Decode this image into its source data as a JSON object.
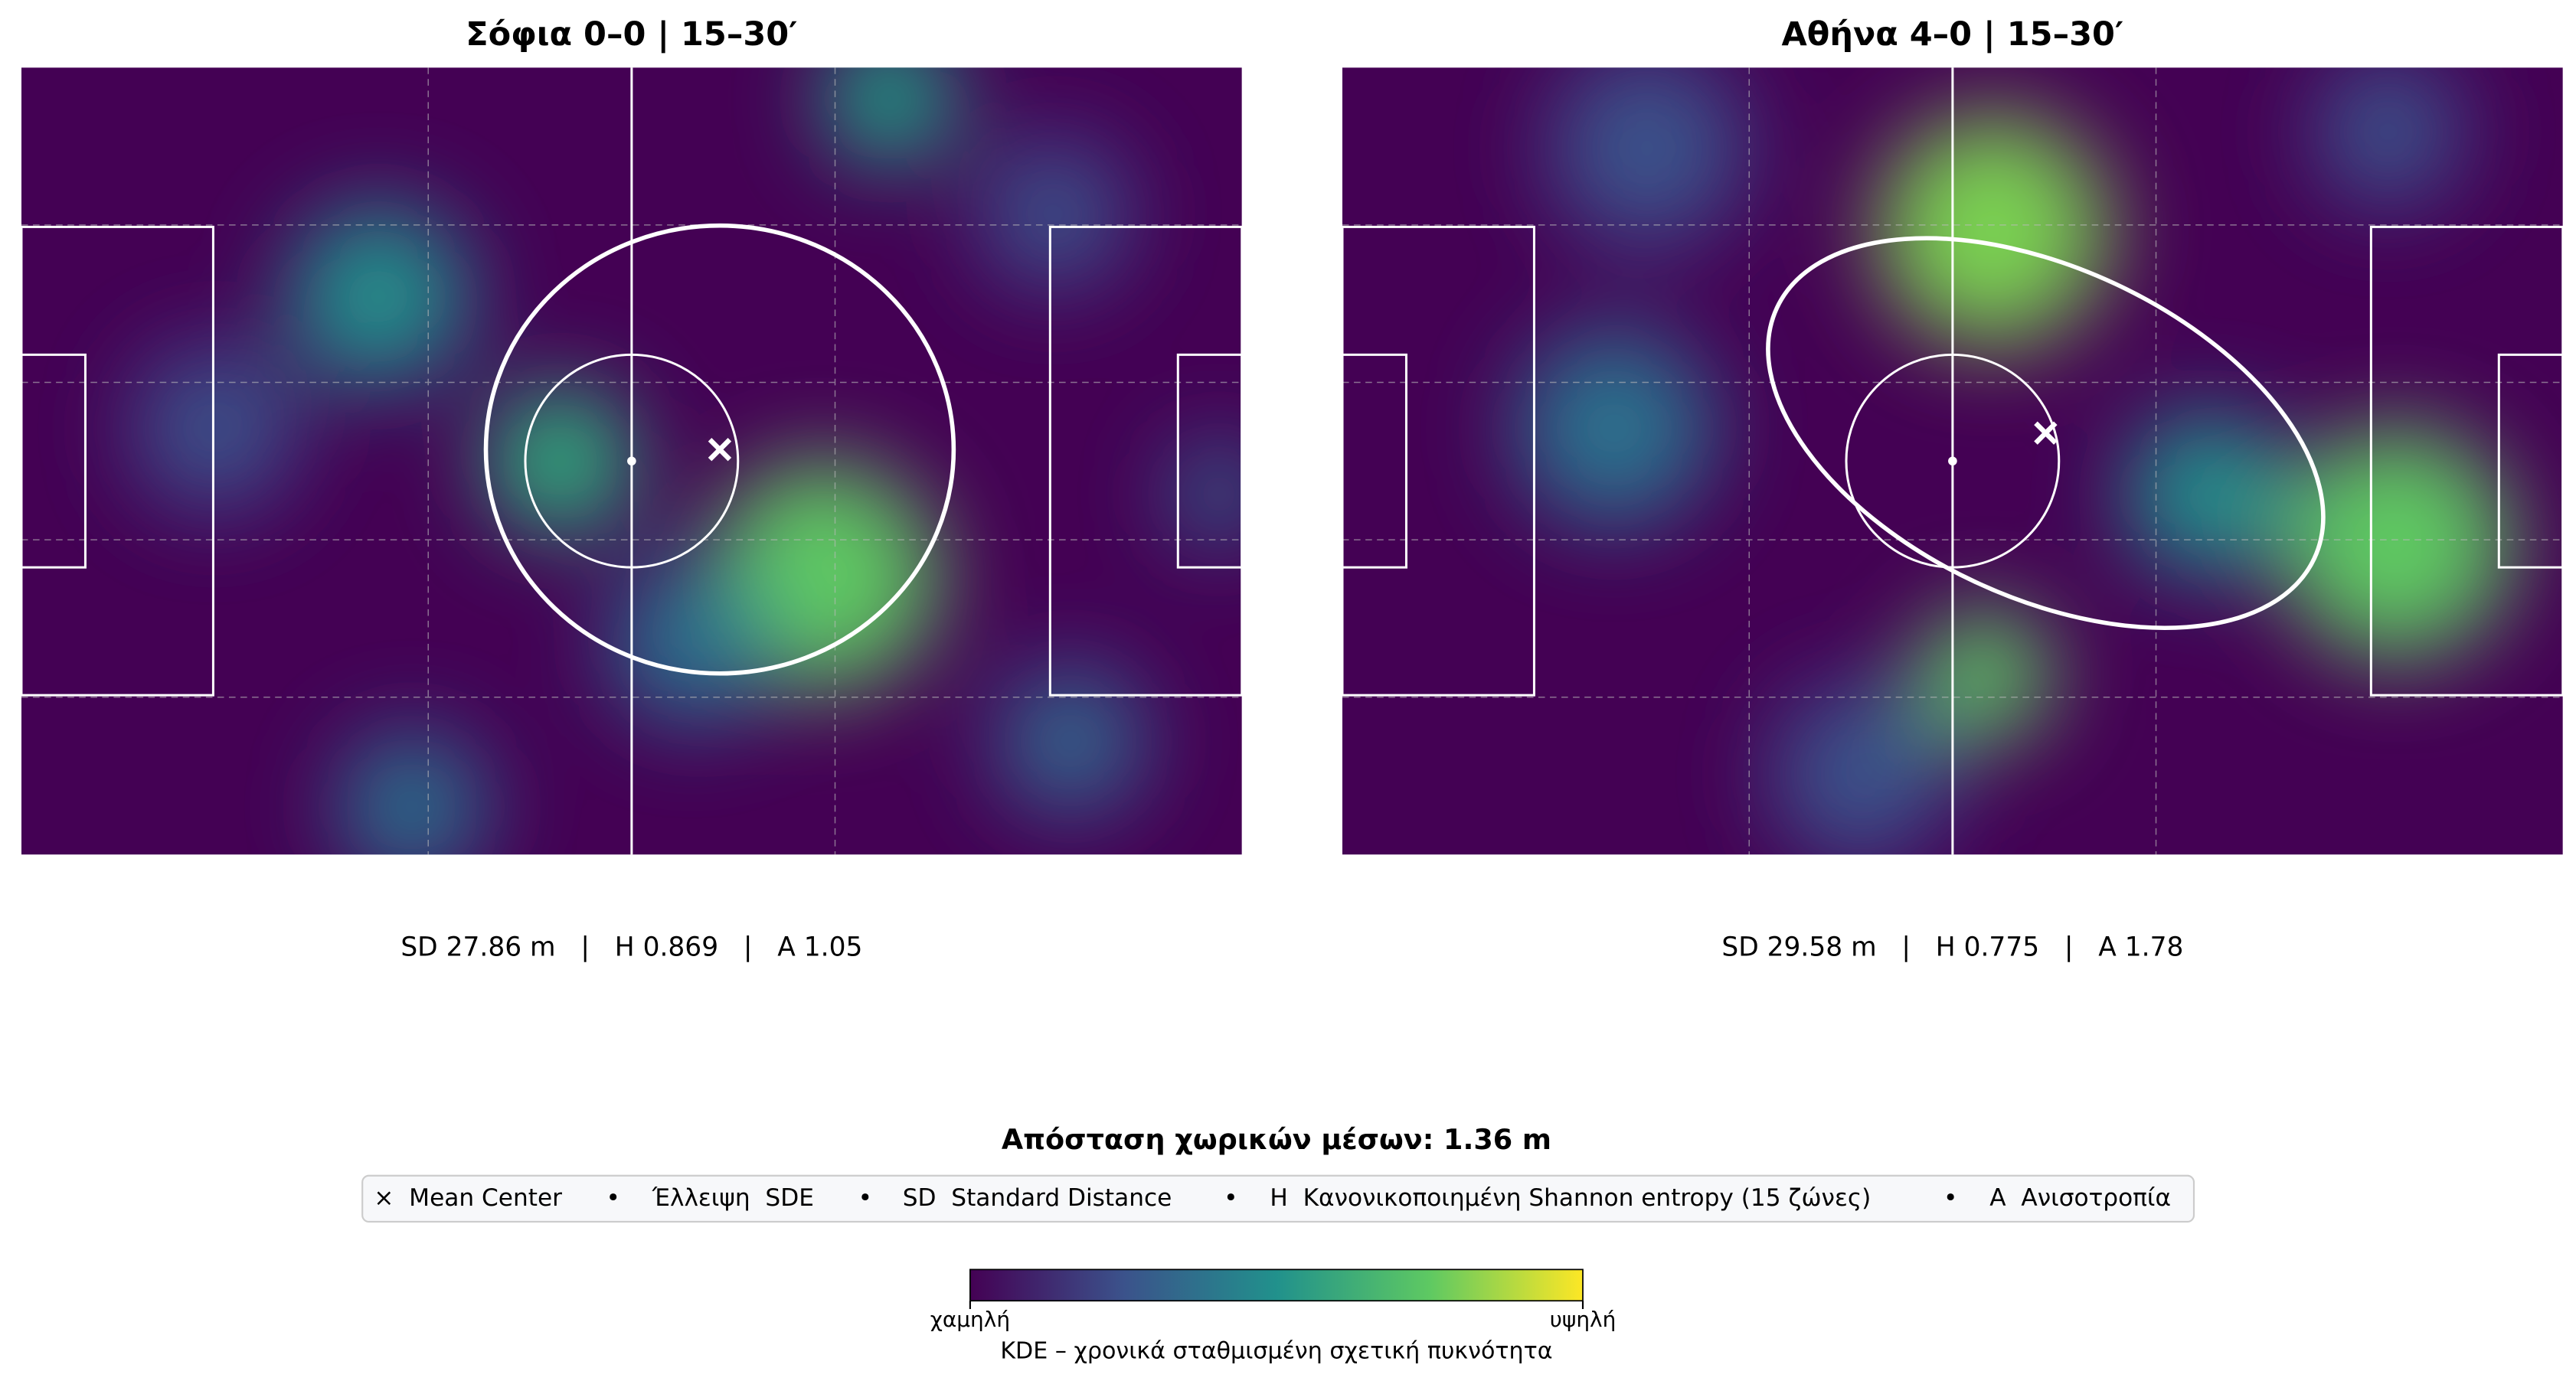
{
  "panels": [
    {
      "title": "Σόφια 0–0 | 15–30′",
      "stats": "SD 27.86 m   |   H 0.869   |   A 1.05"
    },
    {
      "title": "Αθήνα 4–0 | 15–30′",
      "stats": "SD 29.58 m   |   H 0.775   |   A 1.78"
    }
  ],
  "subtitle": "Απόσταση χωρικών μέσων: 1.36 m",
  "legend": [
    "×  Mean Center",
    "Έλλειψη  SDE",
    "SD  Standard Distance",
    "H  Κανονικοποιημένη Shannon entropy (15 ζώνες)",
    "A  Ανισοτροπία"
  ],
  "colorbar": {
    "low": "χαμηλή",
    "high": "υψηλή",
    "label": "KDE – χρονικά σταθμισμένη σχετική πυκνότητα"
  }
}
